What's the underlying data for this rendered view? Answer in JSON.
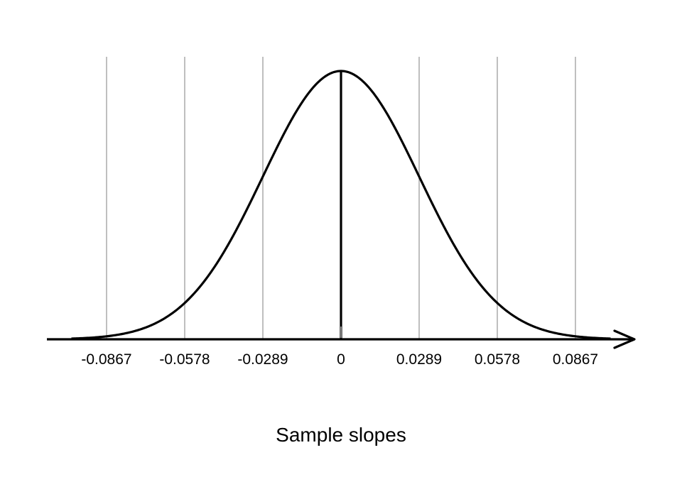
{
  "chart_data": {
    "type": "line",
    "distribution": "normal",
    "mean": 0,
    "sd": 0.0289,
    "xlabel": "Sample slopes",
    "ylabel": "",
    "title": "",
    "xlim": [
      -0.0997,
      0.0997
    ],
    "ticks": [
      -0.0867,
      -0.0578,
      -0.0289,
      0,
      0.0289,
      0.0578,
      0.0867
    ],
    "tick_labels": [
      "-0.0867",
      "-0.0578",
      "-0.0289",
      "0",
      "0.0289",
      "0.0578",
      "0.0867"
    ],
    "reference_line_x": 0,
    "gridlines": "vertical at ticks (excluding mean)",
    "colors": {
      "curve": "#000000",
      "grid": "#bfbfbf",
      "axis": "#000000"
    }
  }
}
